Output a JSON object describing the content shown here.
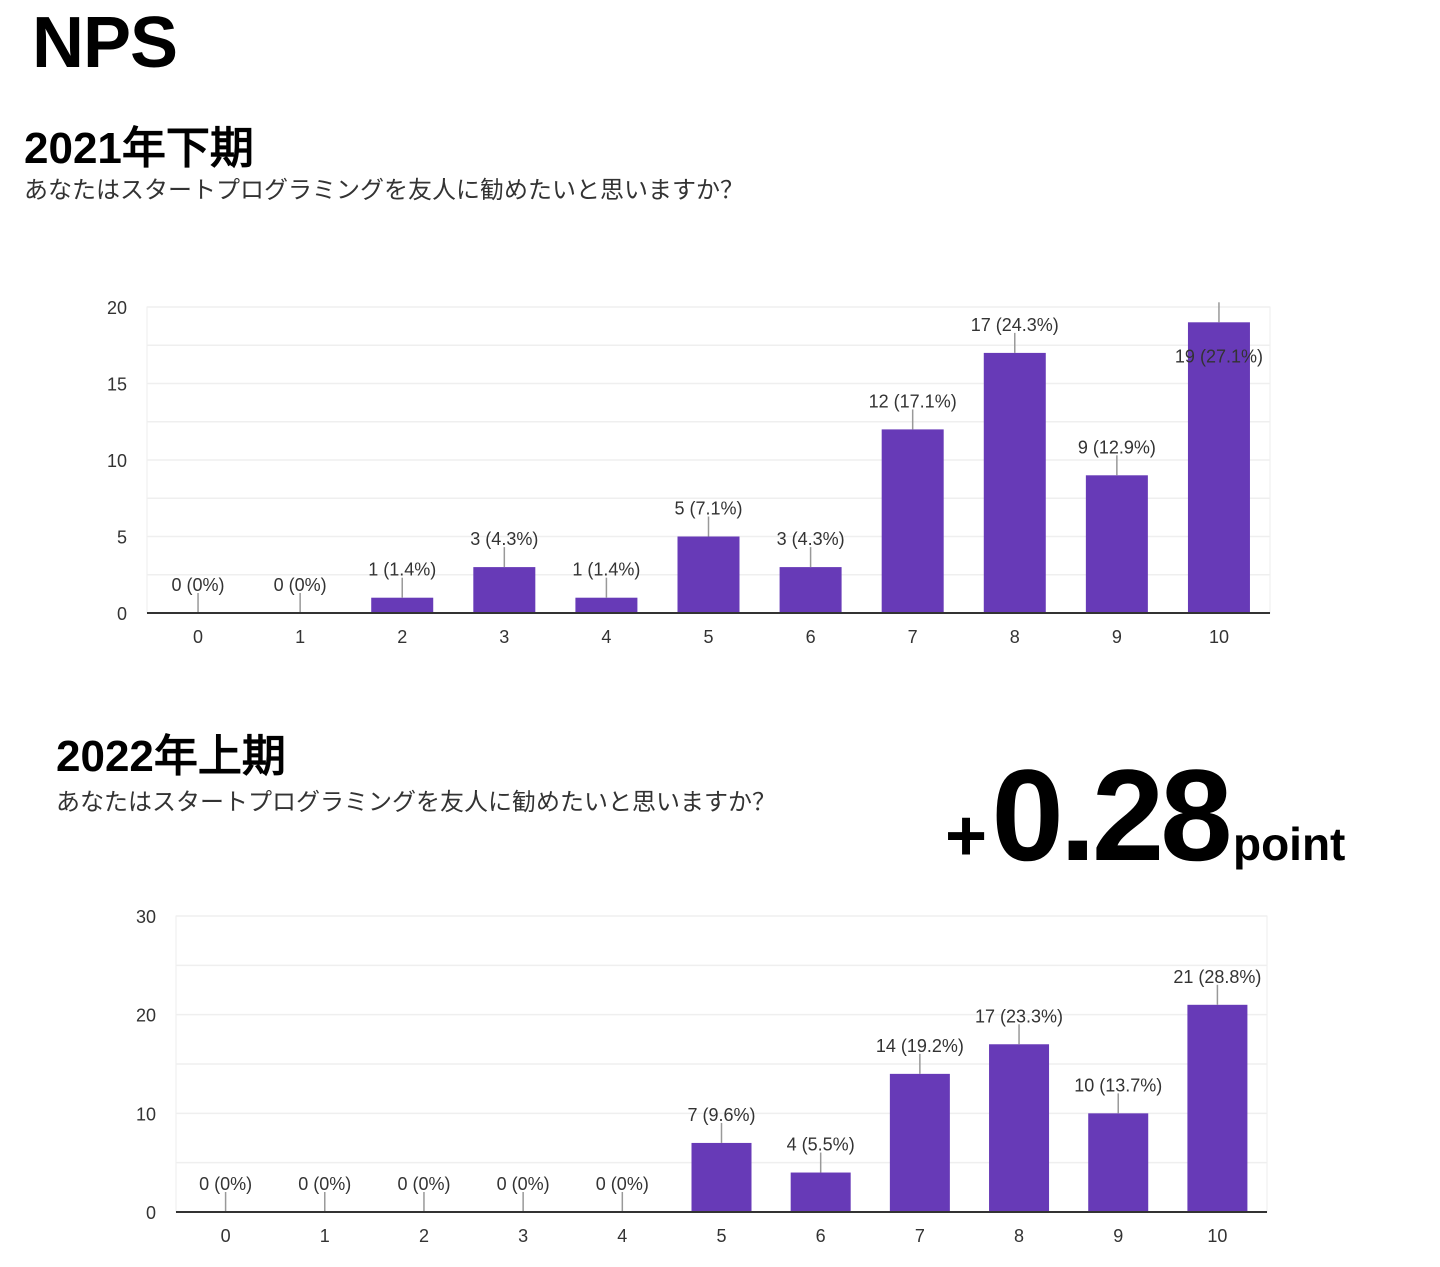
{
  "page_title": "NPS",
  "delta": {
    "sign": "+",
    "value": "0.28",
    "unit": "point"
  },
  "chart_data": [
    {
      "type": "bar",
      "title": "2021年下期",
      "subtitle": "あなたはスタートプログラミングを友人に勧めたいと思いますか？",
      "categories": [
        "0",
        "1",
        "2",
        "3",
        "4",
        "5",
        "6",
        "7",
        "8",
        "9",
        "10"
      ],
      "values": [
        0,
        0,
        1,
        3,
        1,
        5,
        3,
        12,
        17,
        9,
        19
      ],
      "labels": [
        "0 (0%)",
        "0 (0%)",
        "1 (1.4%)",
        "3 (4.3%)",
        "1 (1.4%)",
        "5 (7.1%)",
        "3 (4.3%)",
        "12 (17.1%)",
        "17 (24.3%)",
        "9 (12.9%)",
        "19 (27.1%)"
      ],
      "yticks": [
        0,
        5,
        10,
        15,
        20
      ],
      "ylim": [
        0,
        20
      ],
      "color": "#673ab7",
      "xlabel": "",
      "ylabel": ""
    },
    {
      "type": "bar",
      "title": "2022年上期",
      "subtitle": "あなたはスタートプログラミングを友人に勧めたいと思いますか？",
      "categories": [
        "0",
        "1",
        "2",
        "3",
        "4",
        "5",
        "6",
        "7",
        "8",
        "9",
        "10"
      ],
      "values": [
        0,
        0,
        0,
        0,
        0,
        7,
        4,
        14,
        17,
        10,
        21
      ],
      "labels": [
        "0 (0%)",
        "0 (0%)",
        "0 (0%)",
        "0 (0%)",
        "0 (0%)",
        "7 (9.6%)",
        "4 (5.5%)",
        "14 (19.2%)",
        "17 (23.3%)",
        "10 (13.7%)",
        "21 (28.8%)"
      ],
      "yticks": [
        0,
        10,
        20,
        30
      ],
      "ylim": [
        0,
        30
      ],
      "color": "#673ab7",
      "xlabel": "",
      "ylabel": ""
    }
  ]
}
